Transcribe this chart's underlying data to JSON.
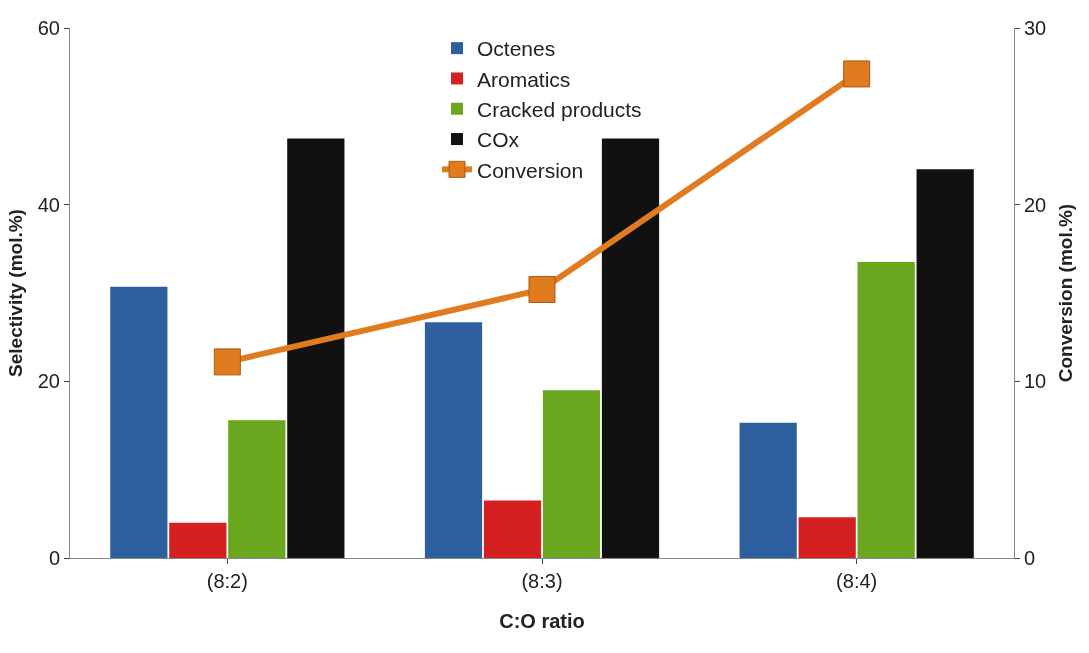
{
  "chart_data": {
    "type": "bar",
    "xlabel": "C:O ratio",
    "ylabel": "Selectivity (mol.%)",
    "y2label": "Conversion (mol.%)",
    "categories": [
      "(8:2)",
      "(8:3)",
      "(8:4)"
    ],
    "series": [
      {
        "name": "Octenes",
        "color": "#2e5f9e",
        "values": [
          30.7,
          26.7,
          15.3
        ]
      },
      {
        "name": "Aromatics",
        "color": "#d42020",
        "values": [
          4.0,
          6.5,
          4.6
        ]
      },
      {
        "name": "Cracked products",
        "color": "#6aa61e",
        "values": [
          15.6,
          19.0,
          33.5
        ]
      },
      {
        "name": "COx",
        "color": "#111111",
        "values": [
          47.5,
          47.5,
          44.0
        ]
      },
      {
        "name": "Conversion",
        "type": "line",
        "axis": "y2",
        "color": "#e07b1f",
        "marker": "square",
        "values": [
          11.1,
          15.2,
          27.4
        ]
      }
    ],
    "ylim": [
      0,
      60
    ],
    "yticks": [
      0,
      20,
      40,
      60
    ],
    "y2lim": [
      0,
      30
    ],
    "y2ticks": [
      0,
      10,
      20,
      30
    ],
    "grid": false,
    "legend": "top"
  }
}
